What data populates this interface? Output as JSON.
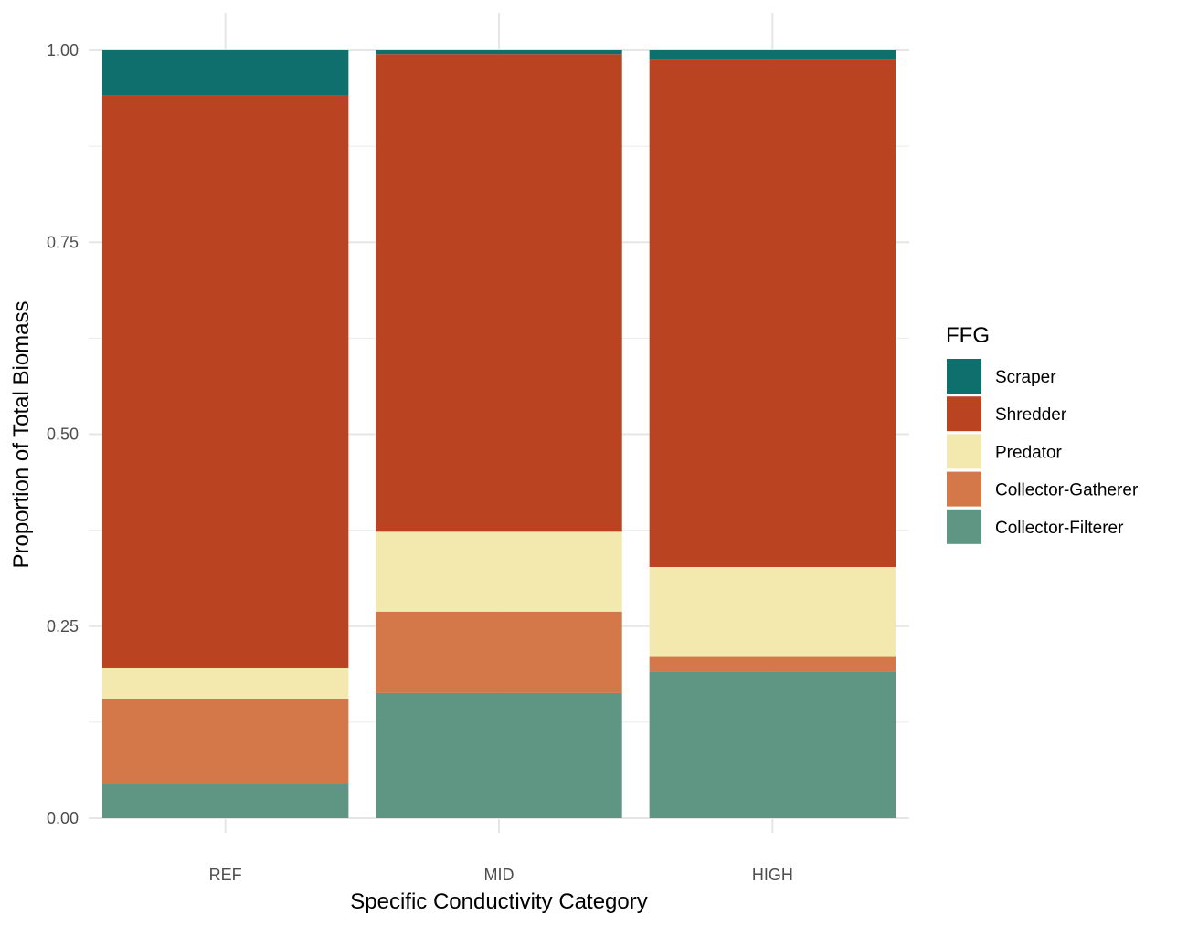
{
  "chart_data": {
    "type": "bar",
    "stacked": true,
    "categories": [
      "REF",
      "MID",
      "HIGH"
    ],
    "xlabel": "Specific Conductivity Category",
    "ylabel": "Proportion of Total Biomass",
    "ylim": [
      0,
      1
    ],
    "yticks": [
      "0.00",
      "0.25",
      "0.50",
      "0.75",
      "1.00"
    ],
    "grid": true,
    "legend_position": "right",
    "legend_title": "FFG",
    "series": [
      {
        "name": "Collector-Filterer",
        "color": "#5f9683",
        "values": [
          0.044,
          0.163,
          0.191
        ]
      },
      {
        "name": "Collector-Gatherer",
        "color": "#d47749",
        "values": [
          0.111,
          0.106,
          0.02
        ]
      },
      {
        "name": "Predator",
        "color": "#f3e9ae",
        "values": [
          0.04,
          0.104,
          0.116
        ]
      },
      {
        "name": "Shredder",
        "color": "#ba4322",
        "values": [
          0.746,
          0.622,
          0.661
        ]
      },
      {
        "name": "Scraper",
        "color": "#0f6f6c",
        "values": [
          0.059,
          0.005,
          0.012
        ]
      }
    ],
    "legend_order": [
      "Scraper",
      "Shredder",
      "Predator",
      "Collector-Gatherer",
      "Collector-Filterer"
    ]
  }
}
